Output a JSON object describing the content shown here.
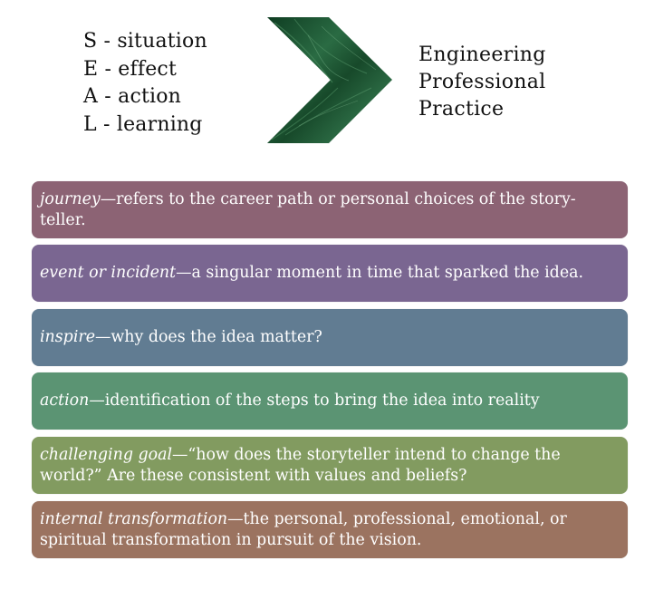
{
  "seal": {
    "items": [
      {
        "letter": "S",
        "sep": " - ",
        "word": "situation"
      },
      {
        "letter": "E",
        "sep": " - ",
        "word": "effect"
      },
      {
        "letter": "A",
        "sep": " - ",
        "word": "action"
      },
      {
        "letter": "L",
        "sep": " - ",
        "word": "learning"
      }
    ]
  },
  "arrow": {
    "icon": "chevron-right-icon",
    "color": "#1f5a32"
  },
  "target": {
    "lines": [
      "Engineering",
      "Professional",
      "Practice"
    ]
  },
  "boxes": [
    {
      "term": "journey",
      "dash": "—",
      "text": "refers to the career path or personal choices of the story-teller.",
      "color": "#8c6374"
    },
    {
      "term": "event or incident",
      "dash": "—",
      "text": "a singular moment in time that sparked the idea.",
      "color": "#7a6691"
    },
    {
      "term": "inspire",
      "dash": "—",
      "text": "why does the idea matter?",
      "color": "#617c92"
    },
    {
      "term": "action",
      "dash": "—",
      "text": "identification of the steps to bring the idea into reality",
      "color": "#5b9473"
    },
    {
      "term": "challenging goal",
      "dash": "—",
      "text": "“how does the storyteller intend to change the world?” Are these consistent with values and beliefs?",
      "color": "#829b60"
    },
    {
      "term": "internal transformation",
      "dash": "—",
      "text": "the personal, professional, emotional, or spiritual transformation in pursuit of the vision.",
      "color": "#9b7360"
    }
  ]
}
